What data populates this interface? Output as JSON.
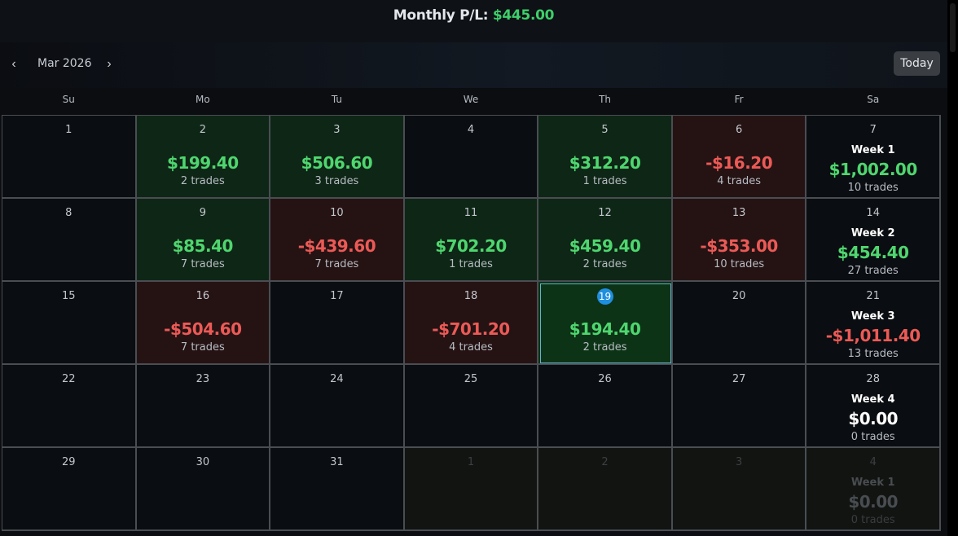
{
  "header": {
    "label": "Monthly P/L:",
    "value": "$445.00"
  },
  "nav": {
    "month": "Mar 2026",
    "prev": "‹",
    "next": "›",
    "today": "Today"
  },
  "weekdays": [
    "Su",
    "Mo",
    "Tu",
    "We",
    "Th",
    "Fr",
    "Sa"
  ],
  "weeks": [
    [
      {
        "day": "1"
      },
      {
        "day": "2",
        "pl": "$199.40",
        "trades": "2 trades",
        "status": "pos"
      },
      {
        "day": "3",
        "pl": "$506.60",
        "trades": "3 trades",
        "status": "pos"
      },
      {
        "day": "4"
      },
      {
        "day": "5",
        "pl": "$312.20",
        "trades": "1 trades",
        "status": "pos"
      },
      {
        "day": "6",
        "pl": "-$16.20",
        "trades": "4 trades",
        "status": "neg"
      },
      {
        "day": "7",
        "week": "Week 1",
        "week_pl": "$1,002.00",
        "week_trades": "10 trades",
        "week_status": "green"
      }
    ],
    [
      {
        "day": "8"
      },
      {
        "day": "9",
        "pl": "$85.40",
        "trades": "7 trades",
        "status": "pos"
      },
      {
        "day": "10",
        "pl": "-$439.60",
        "trades": "7 trades",
        "status": "neg"
      },
      {
        "day": "11",
        "pl": "$702.20",
        "trades": "1 trades",
        "status": "pos"
      },
      {
        "day": "12",
        "pl": "$459.40",
        "trades": "2 trades",
        "status": "pos"
      },
      {
        "day": "13",
        "pl": "-$353.00",
        "trades": "10 trades",
        "status": "neg"
      },
      {
        "day": "14",
        "week": "Week 2",
        "week_pl": "$454.40",
        "week_trades": "27 trades",
        "week_status": "green"
      }
    ],
    [
      {
        "day": "15"
      },
      {
        "day": "16",
        "pl": "-$504.60",
        "trades": "7 trades",
        "status": "neg"
      },
      {
        "day": "17"
      },
      {
        "day": "18",
        "pl": "-$701.20",
        "trades": "4 trades",
        "status": "neg"
      },
      {
        "day": "19",
        "pl": "$194.40",
        "trades": "2 trades",
        "status": "today"
      },
      {
        "day": "20"
      },
      {
        "day": "21",
        "week": "Week 3",
        "week_pl": "-$1,011.40",
        "week_trades": "13 trades",
        "week_status": "red"
      }
    ],
    [
      {
        "day": "22"
      },
      {
        "day": "23"
      },
      {
        "day": "24"
      },
      {
        "day": "25"
      },
      {
        "day": "26"
      },
      {
        "day": "27"
      },
      {
        "day": "28",
        "week": "Week 4",
        "week_pl": "$0.00",
        "week_trades": "0 trades",
        "week_status": "white"
      }
    ],
    [
      {
        "day": "29"
      },
      {
        "day": "30"
      },
      {
        "day": "31"
      },
      {
        "day": "1",
        "status": "other"
      },
      {
        "day": "2",
        "status": "other"
      },
      {
        "day": "3",
        "status": "other"
      },
      {
        "day": "4",
        "status": "other",
        "week": "Week 1",
        "week_pl": "$0.00",
        "week_trades": "0 trades",
        "week_status": "white"
      }
    ]
  ]
}
